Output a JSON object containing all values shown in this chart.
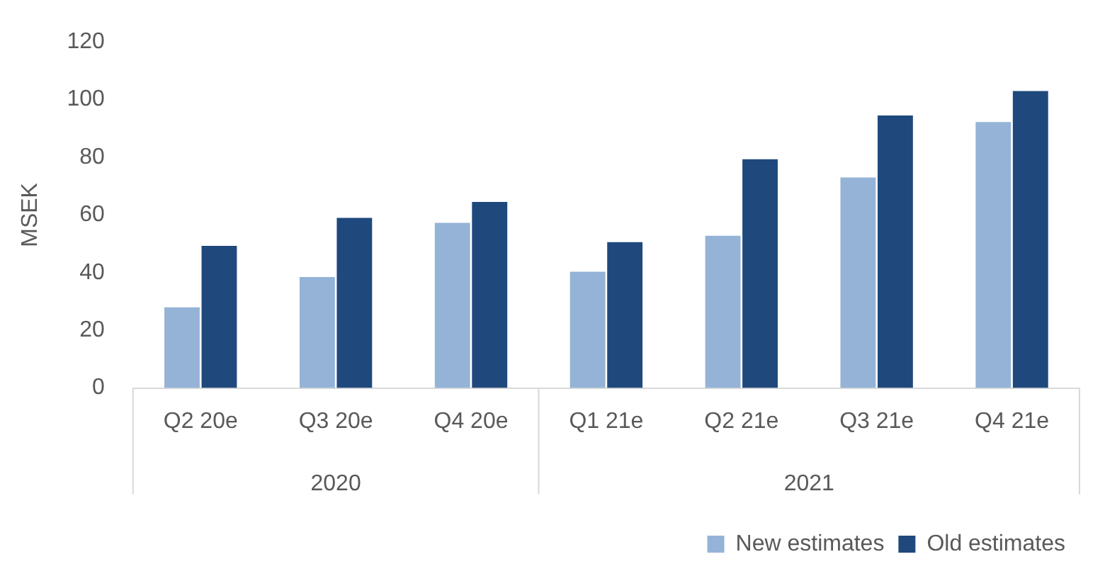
{
  "chart_data": {
    "type": "bar",
    "ylabel": "MSEK",
    "categories": [
      "Q2 20e",
      "Q3 20e",
      "Q4 20e",
      "Q1 21e",
      "Q2 21e",
      "Q3 21e",
      "Q4 21e"
    ],
    "series": [
      {
        "name": "New estimates",
        "color": "#95b3d7",
        "values": [
          28,
          38.5,
          57.3,
          40.3,
          52.8,
          73,
          92.2
        ]
      },
      {
        "name": "Old estimates",
        "color": "#1f497d",
        "values": [
          49.3,
          59,
          64.5,
          50.6,
          79.3,
          94.5,
          103
        ]
      }
    ],
    "ylim": [
      0,
      120
    ],
    "yticks": [
      0,
      20,
      40,
      60,
      80,
      100,
      120
    ],
    "grid": false,
    "legend": "bottom right",
    "annotations": [
      "2020",
      "2021"
    ]
  }
}
